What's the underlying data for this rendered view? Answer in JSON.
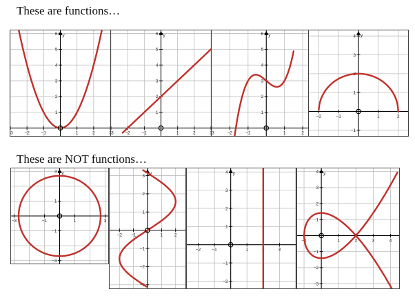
{
  "headings": {
    "functions": "These are functions…",
    "not_functions": "These are NOT functions…"
  },
  "colors": {
    "curve": "#c0302a",
    "grid": "#bdbdbd",
    "axis": "#000000"
  },
  "axis_letter_y": "y",
  "graphs": [
    {
      "key": "parabola",
      "x_range": [
        -3,
        3
      ],
      "y_range": [
        -0.5,
        6.2
      ],
      "x_ticks": [
        "−3",
        "−2",
        "−1",
        "1",
        "2",
        "3"
      ],
      "y_ticks": [
        "1",
        "2",
        "3",
        "4",
        "5",
        "6"
      ],
      "curve": "y = x^2"
    },
    {
      "key": "line",
      "x_range": [
        -3,
        3
      ],
      "y_range": [
        -0.5,
        6.2
      ],
      "x_ticks": [
        "−3",
        "−2",
        "−1",
        "1",
        "2",
        "3"
      ],
      "y_ticks": [
        "1",
        "2",
        "3",
        "4",
        "5",
        "6"
      ],
      "curve": "y = x + 2"
    },
    {
      "key": "cubic",
      "x_range": [
        -3,
        2.3
      ],
      "y_range": [
        -0.5,
        6.2
      ],
      "x_ticks": [
        "−3",
        "−2",
        "−1",
        "1",
        "2"
      ],
      "y_ticks": [
        "1",
        "2",
        "3",
        "4",
        "5",
        "6"
      ],
      "curve": "y = x^3 - x + 3"
    },
    {
      "key": "semicircle",
      "x_range": [
        -2.5,
        2.5
      ],
      "y_range": [
        -1.3,
        4.3
      ],
      "x_ticks": [
        "−2",
        "−1",
        "1",
        "2"
      ],
      "y_ticks": [
        "−1",
        "1",
        "2",
        "3",
        "4"
      ],
      "curve": "y = sqrt(4 - x^2)"
    },
    {
      "key": "circle",
      "x_range": [
        -3.2,
        3.2
      ],
      "y_range": [
        -3.2,
        3.2
      ],
      "x_ticks": [
        "−3",
        "−1",
        "1",
        "3"
      ],
      "y_ticks": [
        "−3",
        "−1",
        "1",
        "3"
      ],
      "curve": "x^2 + y^2 = 9"
    },
    {
      "key": "sideways-sine",
      "x_range": [
        -2.7,
        2.7
      ],
      "y_range": [
        -3.2,
        3.4
      ],
      "x_ticks": [
        "−2",
        "−1",
        "1",
        "2"
      ],
      "y_ticks": [
        "−3",
        "−2",
        "−1",
        "1",
        "2",
        "3"
      ],
      "curve": "x = 2 sin(y)"
    },
    {
      "key": "vertical-line",
      "x_range": [
        -2.7,
        4.0
      ],
      "y_range": [
        -2.4,
        4.2
      ],
      "x_ticks": [
        "−2",
        "−1",
        "1",
        "2",
        "3"
      ],
      "y_ticks": [
        "−2",
        "−1",
        "1",
        "2",
        "3",
        "4"
      ],
      "curve": "x = 2"
    },
    {
      "key": "loop",
      "x_range": [
        -1.4,
        4.5
      ],
      "y_range": [
        -3.3,
        4.2
      ],
      "x_ticks": [
        "−1",
        "1",
        "2",
        "3",
        "4"
      ],
      "y_ticks": [
        "−3",
        "−2",
        "−1",
        "1",
        "2",
        "3",
        "4"
      ],
      "curve": "y^2 = (x - 2)^2 (x + 1) / 2"
    }
  ]
}
